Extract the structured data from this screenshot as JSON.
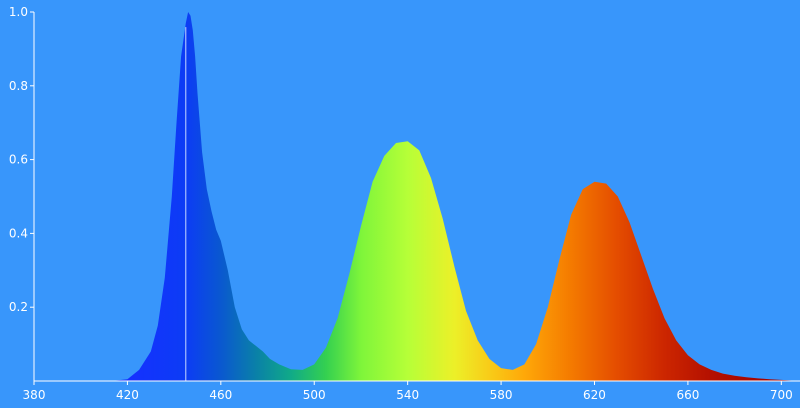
{
  "chart_data": {
    "type": "area",
    "title": "",
    "xlabel": "",
    "ylabel": "",
    "xlim": [
      380,
      708
    ],
    "ylim": [
      0,
      1.0
    ],
    "grid": false,
    "legend": "none",
    "x_ticks": [
      "380",
      "420",
      "460",
      "500",
      "540",
      "580",
      "620",
      "660",
      "700"
    ],
    "y_ticks": [
      "0.2",
      "0.4",
      "0.6",
      "0.8",
      "1.0"
    ],
    "colors": {
      "background": "#3896fb",
      "axis": "#ffffff",
      "spectrum_gradient": [
        {
          "nm": 420,
          "color": "#1530ff"
        },
        {
          "nm": 445,
          "color": "#0c3cf5"
        },
        {
          "nm": 460,
          "color": "#0a58d0"
        },
        {
          "nm": 475,
          "color": "#0a80a8"
        },
        {
          "nm": 490,
          "color": "#10aa88"
        },
        {
          "nm": 505,
          "color": "#34d050"
        },
        {
          "nm": 520,
          "color": "#7ef53a"
        },
        {
          "nm": 540,
          "color": "#b6ff38"
        },
        {
          "nm": 560,
          "color": "#ecf028"
        },
        {
          "nm": 575,
          "color": "#f8cc18"
        },
        {
          "nm": 590,
          "color": "#ffa808"
        },
        {
          "nm": 610,
          "color": "#f47a00"
        },
        {
          "nm": 630,
          "color": "#e44c00"
        },
        {
          "nm": 650,
          "color": "#cc2600"
        },
        {
          "nm": 670,
          "color": "#b41000"
        },
        {
          "nm": 700,
          "color": "#a00000"
        }
      ]
    },
    "series": [
      {
        "x": [
          413,
          420,
          425,
          430,
          433,
          436,
          439,
          441,
          443,
          445,
          446,
          447,
          448,
          449,
          450,
          452,
          454,
          456,
          458,
          460,
          463,
          466,
          469,
          472,
          475,
          478,
          481,
          485,
          490,
          495,
          500,
          505,
          510,
          515,
          520,
          525,
          530,
          535,
          540,
          545,
          550,
          555,
          560,
          565,
          570,
          575,
          580,
          585,
          590,
          595,
          600,
          605,
          610,
          615,
          620,
          625,
          630,
          635,
          640,
          645,
          650,
          655,
          660,
          665,
          670,
          675,
          680,
          685,
          690,
          695,
          700,
          708
        ],
        "y": [
          0.0,
          0.005,
          0.03,
          0.08,
          0.15,
          0.28,
          0.5,
          0.7,
          0.88,
          0.97,
          1.0,
          0.99,
          0.95,
          0.88,
          0.78,
          0.62,
          0.52,
          0.46,
          0.41,
          0.38,
          0.3,
          0.2,
          0.14,
          0.11,
          0.095,
          0.08,
          0.06,
          0.045,
          0.032,
          0.03,
          0.045,
          0.09,
          0.17,
          0.29,
          0.42,
          0.54,
          0.61,
          0.645,
          0.65,
          0.625,
          0.55,
          0.44,
          0.31,
          0.19,
          0.11,
          0.06,
          0.035,
          0.03,
          0.045,
          0.1,
          0.2,
          0.33,
          0.45,
          0.52,
          0.54,
          0.535,
          0.5,
          0.43,
          0.34,
          0.25,
          0.17,
          0.11,
          0.07,
          0.045,
          0.03,
          0.02,
          0.014,
          0.01,
          0.007,
          0.005,
          0.003,
          0.0
        ]
      }
    ],
    "annotations": [
      {
        "type": "vertical-line",
        "x": 445,
        "color": "#c8d8ff"
      }
    ]
  }
}
